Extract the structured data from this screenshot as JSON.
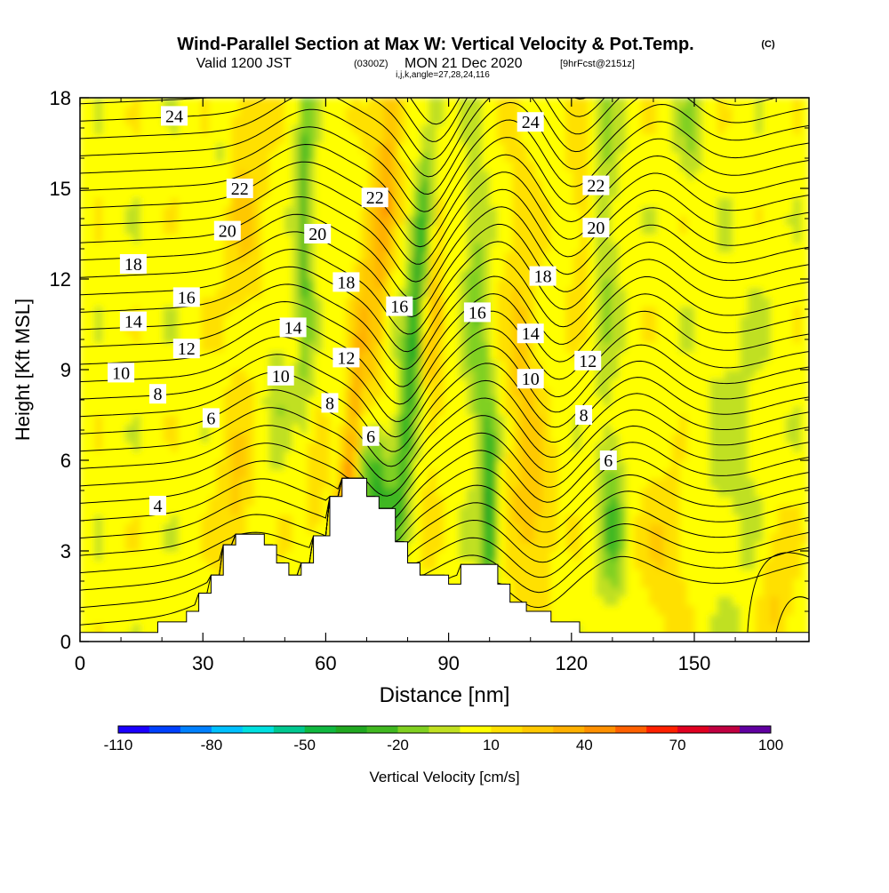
{
  "chart_data": {
    "type": "heatmap",
    "title_main": "Wind-Parallel Section at Max W: Vertical Velocity & Pot.Temp.",
    "title_mark": "(C)",
    "subtitle_a": "Valid 1200 JST",
    "subtitle_b": "(0300Z)",
    "subtitle_c": "MON 21 Dec 2020",
    "subtitle_d": "[9hrFcst@2151z]",
    "subtitle_ijk": "i,j,k,angle=27,28,24,116",
    "xlabel": "Distance [nm]",
    "ylabel": "Height [Kft MSL]",
    "xlim": [
      0,
      178
    ],
    "ylim": [
      0,
      18
    ],
    "x_ticks": [
      0,
      30,
      60,
      90,
      120,
      150
    ],
    "y_ticks": [
      0,
      3,
      6,
      9,
      12,
      15,
      18
    ],
    "colorbar": {
      "label": "Vertical Velocity [cm/s]",
      "tick_labels": [
        "-110",
        "-80",
        "-50",
        "-20",
        "10",
        "40",
        "70",
        "100"
      ],
      "tick_values": [
        -110,
        -80,
        -50,
        -20,
        10,
        40,
        70,
        100
      ],
      "bins": [
        -110,
        -100,
        -90,
        -80,
        -70,
        -60,
        -50,
        -40,
        -30,
        -20,
        -10,
        0,
        10,
        20,
        30,
        40,
        50,
        60,
        70,
        80,
        90,
        100
      ],
      "colors": [
        "#1a00ff",
        "#0040ff",
        "#0080ff",
        "#00c0ff",
        "#00e0e0",
        "#00c890",
        "#10b840",
        "#20a820",
        "#40b820",
        "#80d020",
        "#c0e020",
        "#ffff00",
        "#ffe000",
        "#ffc800",
        "#ffb000",
        "#ff9000",
        "#ff6000",
        "#ff2000",
        "#e00020",
        "#c00040",
        "#a00060",
        "#6000a0"
      ]
    },
    "theta_contours_K": [
      4,
      6,
      8,
      10,
      12,
      14,
      16,
      18,
      20,
      22,
      24
    ],
    "contour_labels": [
      {
        "text": "24",
        "x": 23,
        "y": 17.4
      },
      {
        "text": "24",
        "x": 110,
        "y": 17.2
      },
      {
        "text": "22",
        "x": 39,
        "y": 15.0
      },
      {
        "text": "22",
        "x": 72,
        "y": 14.7
      },
      {
        "text": "22",
        "x": 126,
        "y": 15.1
      },
      {
        "text": "20",
        "x": 36,
        "y": 13.6
      },
      {
        "text": "20",
        "x": 58,
        "y": 13.5
      },
      {
        "text": "20",
        "x": 126,
        "y": 13.7
      },
      {
        "text": "18",
        "x": 13,
        "y": 12.5
      },
      {
        "text": "18",
        "x": 65,
        "y": 11.9
      },
      {
        "text": "18",
        "x": 113,
        "y": 12.1
      },
      {
        "text": "16",
        "x": 26,
        "y": 11.4
      },
      {
        "text": "16",
        "x": 78,
        "y": 11.1
      },
      {
        "text": "16",
        "x": 97,
        "y": 10.9
      },
      {
        "text": "14",
        "x": 13,
        "y": 10.6
      },
      {
        "text": "14",
        "x": 52,
        "y": 10.4
      },
      {
        "text": "14",
        "x": 110,
        "y": 10.2
      },
      {
        "text": "12",
        "x": 26,
        "y": 9.7
      },
      {
        "text": "12",
        "x": 65,
        "y": 9.4
      },
      {
        "text": "12",
        "x": 124,
        "y": 9.3
      },
      {
        "text": "10",
        "x": 10,
        "y": 8.9
      },
      {
        "text": "10",
        "x": 49,
        "y": 8.8
      },
      {
        "text": "10",
        "x": 110,
        "y": 8.7
      },
      {
        "text": "8",
        "x": 19,
        "y": 8.2
      },
      {
        "text": "8",
        "x": 61,
        "y": 7.9
      },
      {
        "text": "8",
        "x": 123,
        "y": 7.5
      },
      {
        "text": "6",
        "x": 32,
        "y": 7.4
      },
      {
        "text": "6",
        "x": 71,
        "y": 6.8
      },
      {
        "text": "6",
        "x": 129,
        "y": 6.0
      },
      {
        "text": "4",
        "x": 19,
        "y": 4.5
      }
    ],
    "terrain_profile": [
      [
        0,
        0.3
      ],
      [
        19,
        0.3
      ],
      [
        19,
        0.65
      ],
      [
        26,
        0.65
      ],
      [
        26,
        1.0
      ],
      [
        29,
        1.0
      ],
      [
        29,
        1.6
      ],
      [
        32,
        1.6
      ],
      [
        32,
        2.2
      ],
      [
        35,
        2.2
      ],
      [
        35,
        3.2
      ],
      [
        38,
        3.2
      ],
      [
        38,
        3.55
      ],
      [
        45,
        3.55
      ],
      [
        45,
        3.2
      ],
      [
        48,
        3.2
      ],
      [
        48,
        2.6
      ],
      [
        51,
        2.6
      ],
      [
        51,
        2.2
      ],
      [
        54,
        2.2
      ],
      [
        54,
        2.6
      ],
      [
        57,
        2.6
      ],
      [
        57,
        3.5
      ],
      [
        61,
        3.5
      ],
      [
        61,
        4.8
      ],
      [
        64,
        4.8
      ],
      [
        64,
        5.4
      ],
      [
        70,
        5.4
      ],
      [
        70,
        4.8
      ],
      [
        73,
        4.8
      ],
      [
        73,
        4.4
      ],
      [
        77,
        4.4
      ],
      [
        77,
        3.3
      ],
      [
        80,
        3.3
      ],
      [
        80,
        2.6
      ],
      [
        83,
        2.6
      ],
      [
        83,
        2.2
      ],
      [
        90,
        2.2
      ],
      [
        90,
        1.9
      ],
      [
        93,
        1.9
      ],
      [
        93,
        2.55
      ],
      [
        102,
        2.55
      ],
      [
        102,
        1.9
      ],
      [
        105,
        1.9
      ],
      [
        105,
        1.3
      ],
      [
        109,
        1.3
      ],
      [
        109,
        1.0
      ],
      [
        115,
        1.0
      ],
      [
        115,
        0.65
      ],
      [
        122,
        0.65
      ],
      [
        122,
        0.3
      ],
      [
        178,
        0.3
      ]
    ]
  }
}
